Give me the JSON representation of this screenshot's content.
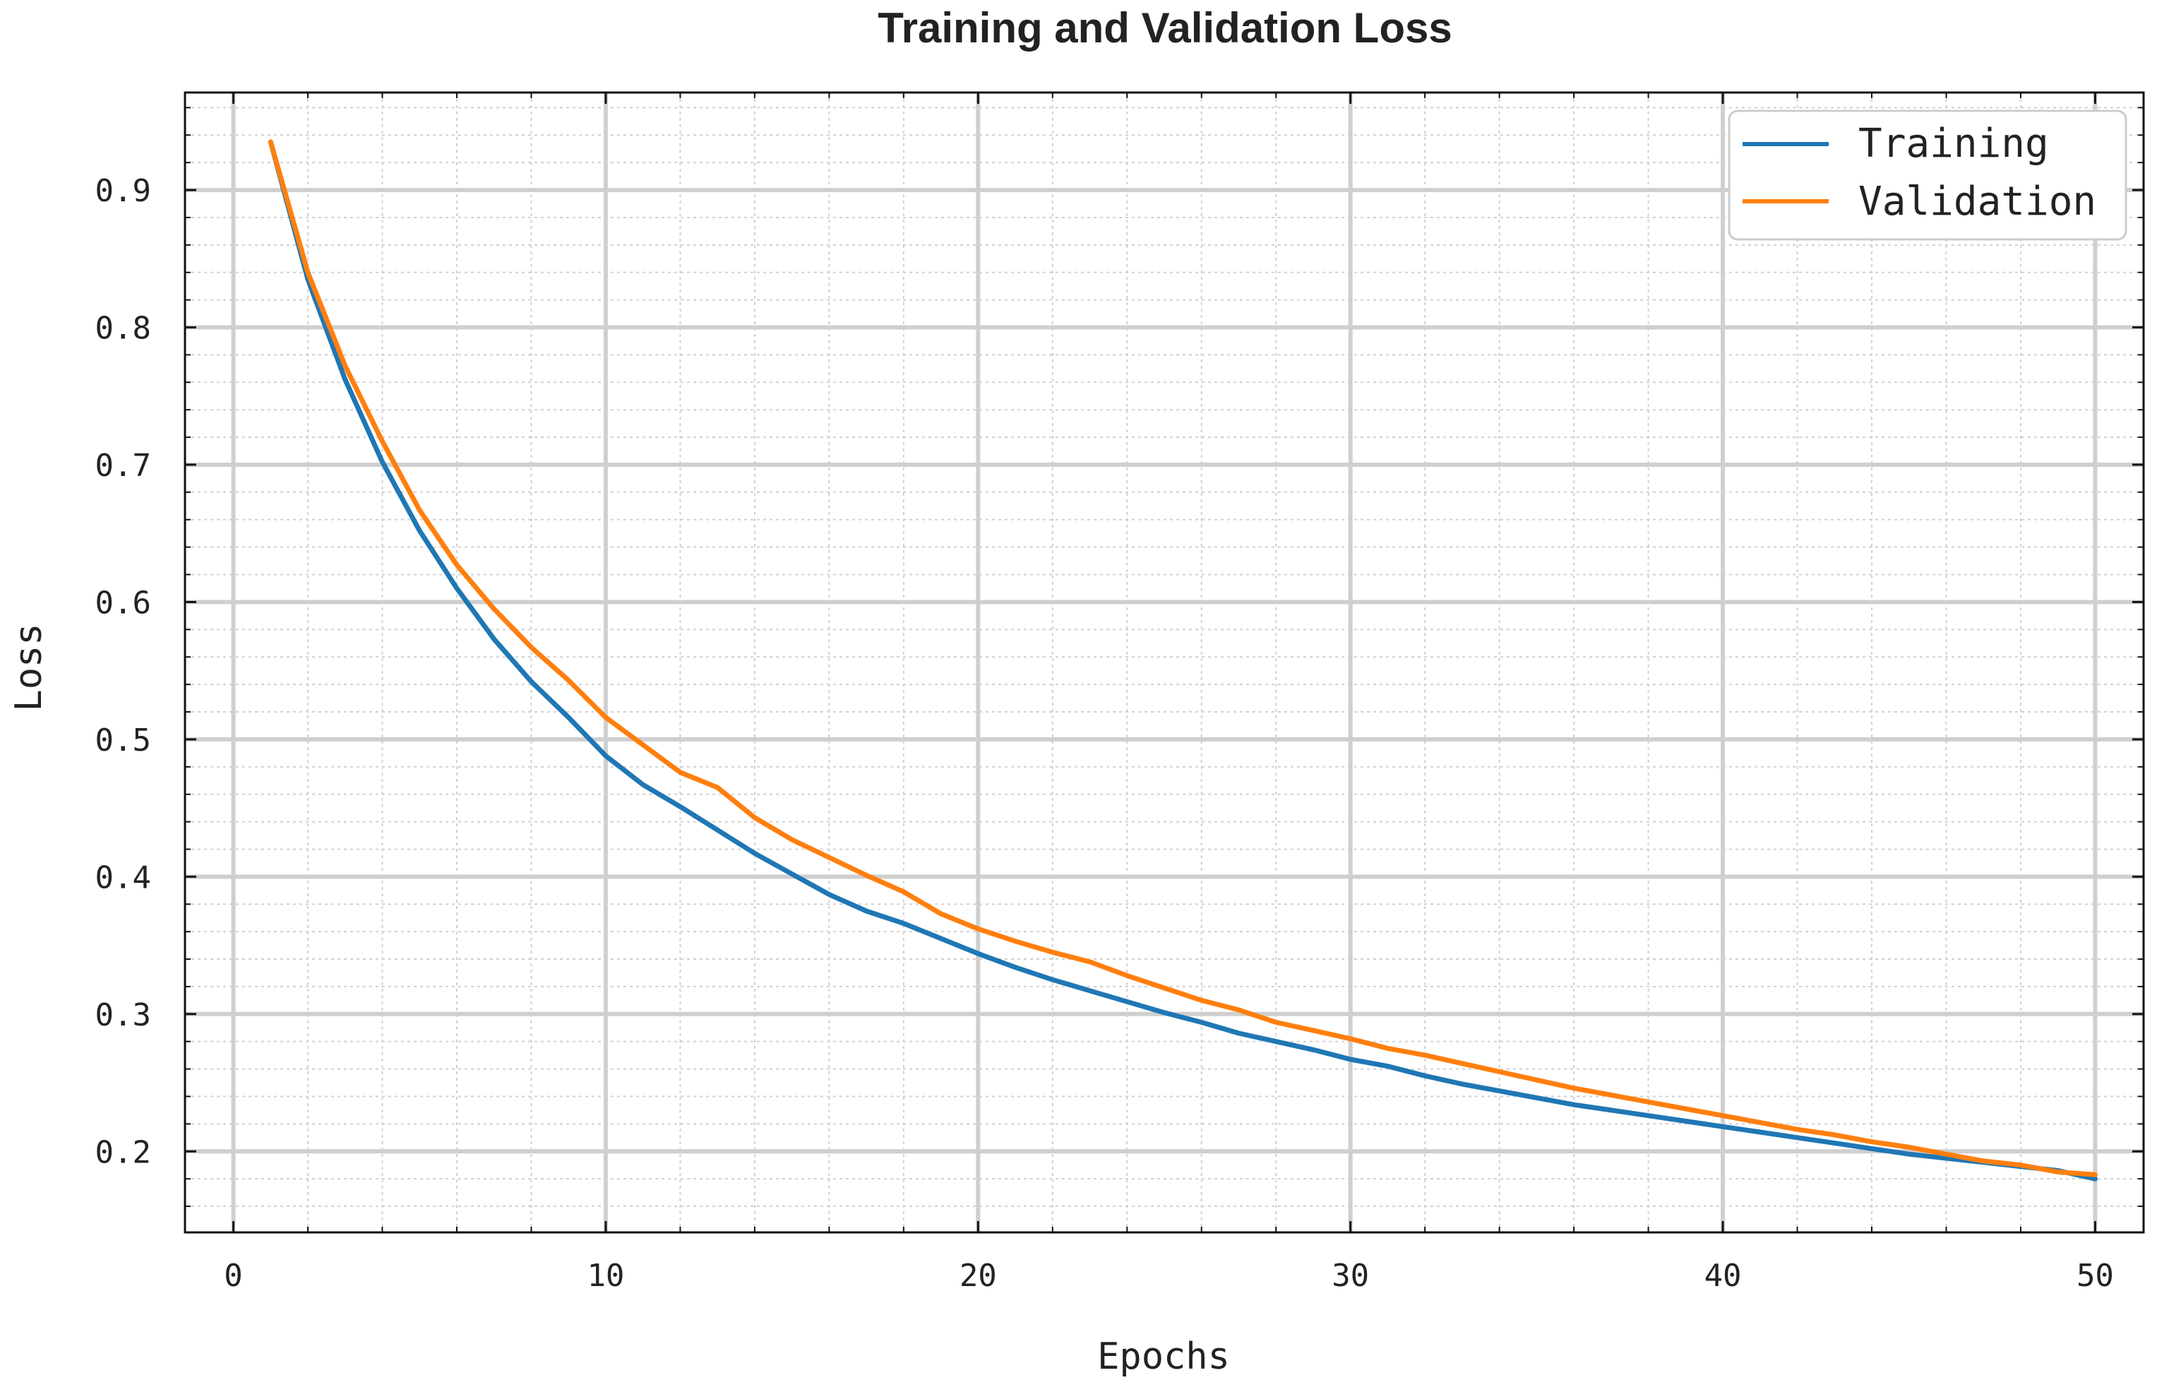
{
  "chart_data": {
    "type": "line",
    "title": "Training and Validation Loss",
    "xlabel": "Epochs",
    "ylabel": "Loss",
    "xlim": [
      -1.3,
      51.3
    ],
    "ylim": [
      0.141,
      0.971
    ],
    "xticks": [
      0,
      10,
      20,
      30,
      40,
      50
    ],
    "yticks": [
      0.2,
      0.3,
      0.4,
      0.5,
      0.6,
      0.7,
      0.8,
      0.9
    ],
    "xtick_labels": [
      "0",
      "10",
      "20",
      "30",
      "40",
      "50"
    ],
    "ytick_labels": [
      "0.2",
      "0.3",
      "0.4",
      "0.5",
      "0.6",
      "0.7",
      "0.8",
      "0.9"
    ],
    "grid": true,
    "legend_position": "top-right",
    "x": [
      1,
      2,
      3,
      4,
      5,
      6,
      7,
      8,
      9,
      10,
      11,
      12,
      13,
      14,
      15,
      16,
      17,
      18,
      19,
      20,
      21,
      22,
      23,
      24,
      25,
      26,
      27,
      28,
      29,
      30,
      31,
      32,
      33,
      34,
      35,
      36,
      37,
      38,
      39,
      40,
      41,
      42,
      43,
      44,
      45,
      46,
      47,
      48,
      49,
      50
    ],
    "series": [
      {
        "name": "Training",
        "color": "#1f77b4",
        "values": [
          0.935,
          0.835,
          0.762,
          0.702,
          0.652,
          0.61,
          0.573,
          0.542,
          0.516,
          0.488,
          0.467,
          0.451,
          0.434,
          0.417,
          0.402,
          0.387,
          0.375,
          0.366,
          0.355,
          0.344,
          0.334,
          0.325,
          0.317,
          0.309,
          0.301,
          0.294,
          0.286,
          0.28,
          0.274,
          0.267,
          0.262,
          0.255,
          0.249,
          0.244,
          0.239,
          0.234,
          0.23,
          0.226,
          0.222,
          0.218,
          0.214,
          0.21,
          0.206,
          0.202,
          0.198,
          0.195,
          0.192,
          0.189,
          0.186,
          0.18
        ]
      },
      {
        "name": "Validation",
        "color": "#ff7f0e",
        "values": [
          0.935,
          0.84,
          0.772,
          0.717,
          0.667,
          0.627,
          0.595,
          0.567,
          0.543,
          0.516,
          0.496,
          0.476,
          0.465,
          0.443,
          0.427,
          0.414,
          0.401,
          0.389,
          0.373,
          0.362,
          0.353,
          0.345,
          0.338,
          0.328,
          0.319,
          0.31,
          0.303,
          0.294,
          0.288,
          0.282,
          0.275,
          0.27,
          0.264,
          0.258,
          0.252,
          0.246,
          0.241,
          0.236,
          0.231,
          0.226,
          0.221,
          0.216,
          0.212,
          0.207,
          0.203,
          0.198,
          0.193,
          0.19,
          0.185,
          0.183
        ]
      }
    ]
  }
}
